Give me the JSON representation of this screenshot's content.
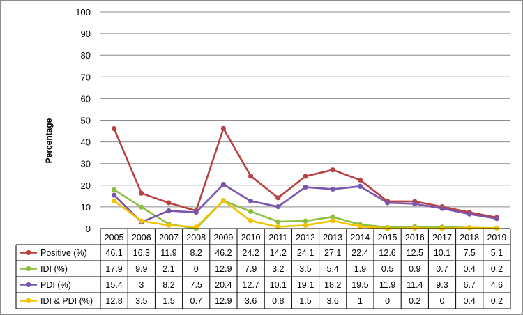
{
  "chart_data": {
    "type": "line",
    "ylabel": "Percentage",
    "ylim": [
      0,
      100
    ],
    "yticks": [
      0,
      10,
      20,
      30,
      40,
      50,
      60,
      70,
      80,
      90,
      100
    ],
    "grid": true,
    "legend": "table-below",
    "categories": [
      "2005",
      "2006",
      "2007",
      "2008",
      "2009",
      "2010",
      "2011",
      "2012",
      "2013",
      "2014",
      "2015",
      "2016",
      "2017",
      "2018",
      "2019"
    ],
    "series": [
      {
        "name": "Positive (%)",
        "color": "#b84141",
        "values": [
          46.1,
          16.3,
          11.9,
          8.2,
          46.2,
          24.2,
          14.2,
          24.1,
          27.1,
          22.4,
          12.6,
          12.5,
          10.1,
          7.5,
          5.1
        ]
      },
      {
        "name": "IDI (%)",
        "color": "#8cbf3f",
        "values": [
          17.9,
          9.9,
          2.1,
          0,
          12.9,
          7.9,
          3.2,
          3.5,
          5.4,
          1.9,
          0.5,
          0.9,
          0.7,
          0.4,
          0.2
        ]
      },
      {
        "name": "PDI (%)",
        "color": "#7a55ad",
        "values": [
          15.4,
          3,
          8.2,
          7.5,
          20.4,
          12.7,
          10.1,
          19.1,
          18.2,
          19.5,
          11.9,
          11.4,
          9.3,
          6.7,
          4.6
        ]
      },
      {
        "name": "IDI & PDI (%)",
        "color": "#f2c300",
        "values": [
          12.8,
          3.5,
          1.5,
          0.7,
          12.9,
          3.6,
          0.8,
          1.5,
          3.6,
          1,
          0,
          0.2,
          0,
          0.4,
          0.2
        ]
      }
    ]
  }
}
